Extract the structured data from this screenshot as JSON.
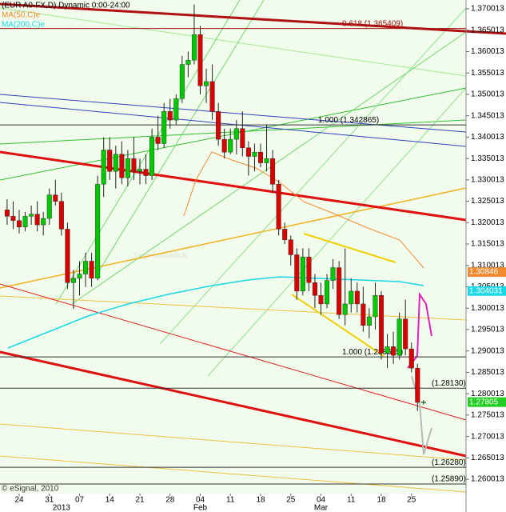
{
  "chart_data": {
    "type": "candlestick",
    "title": "(EUR A0-FX,D) Dynamic 0:00-24:00",
    "indicators": [
      {
        "name": "MA(50,C)e",
        "color": "#f08a30"
      },
      {
        "name": "MA(200,C)e",
        "color": "#18d8e8"
      }
    ],
    "watermark": "Tagesausblick",
    "copyright": "© eSignal, 2010",
    "up_color": "#00c800",
    "down_color": "#d80000",
    "categories": [
      null,
      null,
      "24",
      null,
      null,
      null,
      null,
      "31",
      null,
      null,
      null,
      null,
      "07",
      null,
      null,
      null,
      null,
      "14",
      null,
      null,
      null,
      null,
      "21",
      null,
      null,
      null,
      null,
      "28",
      null,
      null,
      null,
      null,
      "04",
      null,
      null,
      null,
      null,
      "11",
      null,
      null,
      null,
      null,
      "18",
      null,
      null,
      null,
      null,
      "25",
      null,
      null,
      null,
      null,
      "04",
      null,
      null,
      null,
      null,
      "11",
      null,
      null,
      null,
      null,
      "18",
      null,
      null,
      null,
      null,
      "25",
      null,
      null
    ],
    "group_labels": [
      null,
      null,
      null,
      null,
      null,
      null,
      null,
      null,
      null,
      "2013",
      null,
      null,
      null,
      null,
      null,
      null,
      null,
      null,
      null,
      null,
      null,
      null,
      null,
      null,
      null,
      null,
      null,
      null,
      null,
      null,
      null,
      null,
      "Feb",
      null,
      null,
      null,
      null,
      null,
      null,
      null,
      null,
      null,
      null,
      null,
      null,
      null,
      null,
      null,
      null,
      null,
      null,
      null,
      "Mar",
      null,
      null,
      null,
      null,
      null,
      null,
      null,
      null,
      null,
      null,
      null,
      null,
      null,
      null,
      null,
      null,
      null
    ],
    "open": [
      1.323,
      1.3215,
      1.3205,
      1.319,
      1.3215,
      1.322,
      1.3195,
      1.321,
      1.3265,
      1.325,
      1.3185,
      1.306,
      1.307,
      1.308,
      1.311,
      1.307,
      1.329,
      1.337,
      1.332,
      1.336,
      1.3305,
      1.335,
      1.332,
      1.3325,
      1.331,
      1.34,
      1.3385,
      1.346,
      1.344,
      1.349,
      1.357,
      1.358,
      1.364,
      1.352,
      1.353,
      1.346,
      1.3395,
      1.3365,
      1.3395,
      1.342,
      1.3375,
      1.3355,
      1.3365,
      1.334,
      1.335,
      1.329,
      1.3185,
      1.316,
      1.3125,
      1.304,
      1.312,
      1.306,
      1.303,
      1.301,
      1.3065,
      1.3095,
      1.2985,
      1.301,
      1.304,
      1.301,
      1.296,
      1.298,
      1.303,
      1.2895,
      1.291,
      1.289,
      1.2975,
      1.2905,
      1.286,
      1.278
    ],
    "high": [
      1.3255,
      1.325,
      1.323,
      1.3225,
      1.324,
      1.325,
      1.3225,
      1.328,
      1.33,
      1.327,
      1.32,
      1.309,
      1.311,
      1.313,
      1.313,
      1.331,
      1.34,
      1.34,
      1.338,
      1.339,
      1.337,
      1.34,
      1.335,
      1.336,
      1.342,
      1.345,
      1.348,
      1.349,
      1.35,
      1.359,
      1.36,
      1.371,
      1.366,
      1.356,
      1.357,
      1.348,
      1.342,
      1.342,
      1.344,
      1.346,
      1.339,
      1.3385,
      1.3385,
      1.343,
      1.337,
      1.33,
      1.32,
      1.317,
      1.314,
      1.314,
      1.314,
      1.308,
      1.306,
      1.308,
      1.3115,
      1.311,
      1.314,
      1.307,
      1.306,
      1.305,
      1.3,
      1.306,
      1.304,
      1.294,
      1.2945,
      1.299,
      1.302,
      1.292,
      1.287,
      1.2785
    ],
    "low": [
      1.3195,
      1.3185,
      1.3175,
      1.318,
      1.3195,
      1.318,
      1.317,
      1.3195,
      1.324,
      1.317,
      1.3045,
      1.2998,
      1.303,
      1.305,
      1.305,
      1.3065,
      1.326,
      1.33,
      1.328,
      1.329,
      1.3285,
      1.33,
      1.329,
      1.329,
      1.33,
      1.337,
      1.3375,
      1.342,
      1.343,
      1.348,
      1.354,
      1.357,
      1.35,
      1.348,
      1.344,
      1.338,
      1.335,
      1.336,
      1.336,
      1.3355,
      1.331,
      1.332,
      1.333,
      1.332,
      1.327,
      1.317,
      1.315,
      1.31,
      1.302,
      1.303,
      1.304,
      1.3,
      1.2985,
      1.3,
      1.3045,
      1.2975,
      1.296,
      1.299,
      1.299,
      1.2945,
      1.293,
      1.295,
      1.288,
      1.286,
      1.287,
      1.288,
      1.289,
      1.285,
      1.276,
      1.2775
    ],
    "close": [
      1.3215,
      1.3205,
      1.319,
      1.3215,
      1.322,
      1.3195,
      1.321,
      1.3265,
      1.325,
      1.3185,
      1.306,
      1.307,
      1.308,
      1.311,
      1.307,
      1.329,
      1.337,
      1.332,
      1.336,
      1.3305,
      1.335,
      1.332,
      1.3325,
      1.331,
      1.34,
      1.3385,
      1.346,
      1.344,
      1.349,
      1.357,
      1.358,
      1.364,
      1.352,
      1.353,
      1.346,
      1.3395,
      1.3365,
      1.3395,
      1.342,
      1.3375,
      1.3355,
      1.3365,
      1.334,
      1.335,
      1.329,
      1.3185,
      1.316,
      1.3125,
      1.304,
      1.312,
      1.306,
      1.303,
      1.301,
      1.3065,
      1.3095,
      1.2985,
      1.301,
      1.304,
      1.301,
      1.296,
      1.298,
      1.303,
      1.2895,
      1.291,
      1.289,
      1.2975,
      1.2905,
      1.286,
      1.278,
      1.2781
    ],
    "levels": [
      {
        "value": 1.365409,
        "label": "0.618 (1.365409)"
      },
      {
        "value": 1.342865,
        "label": "1.000 (1.342865)"
      },
      {
        "value": 1.288615,
        "label": "1.000 (1.288615)"
      },
      {
        "value": 1.2813,
        "label": "(1.28130)"
      },
      {
        "value": 1.2628,
        "label": "(1.26280)"
      },
      {
        "value": 1.2589,
        "label": "(1.25890)"
      }
    ],
    "markers": [
      {
        "value": 1.30846,
        "color": "#f08a30"
      },
      {
        "value": 1.304031,
        "color": "#18d8e8"
      },
      {
        "value": 1.27805,
        "color": "#22cc22"
      }
    ],
    "ylim": [
      1.25666,
      1.37207
    ],
    "yticks": [
      1.370013,
      1.365013,
      1.360013,
      1.355013,
      1.350013,
      1.345013,
      1.340013,
      1.335013,
      1.330013,
      1.325013,
      1.320013,
      1.315013,
      1.310013,
      1.305013,
      1.300013,
      1.295013,
      1.290013,
      1.285013,
      1.280013,
      1.275013,
      1.270013,
      1.265013,
      1.260013
    ]
  }
}
